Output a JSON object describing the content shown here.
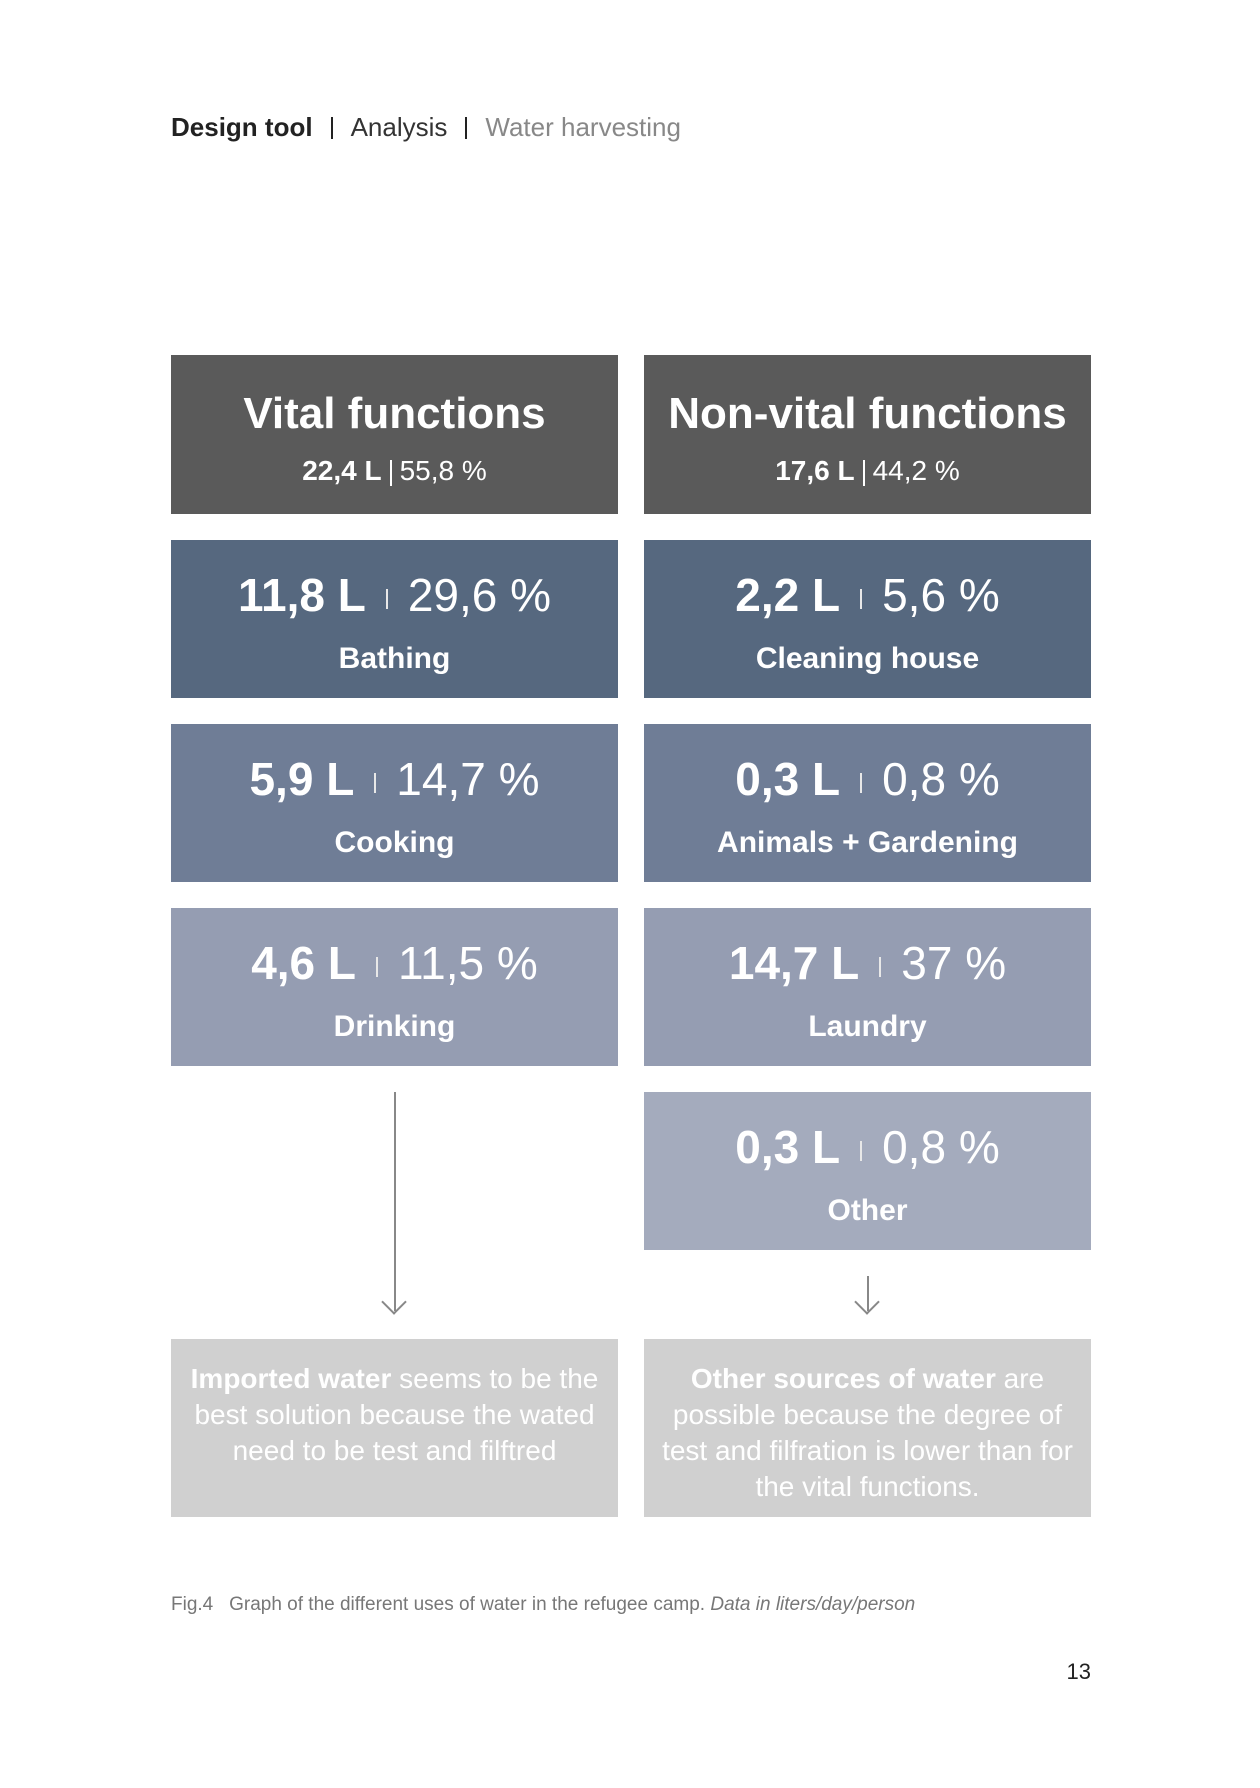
{
  "header": {
    "parts": [
      "Design tool",
      "Analysis",
      "Water harvesting"
    ]
  },
  "columns": [
    {
      "title": "Vital functions",
      "liters": "22,4 L",
      "percent": "55,8 %",
      "uses": [
        {
          "liters": "11,8 L",
          "percent": "29,6 %",
          "label": "Bathing"
        },
        {
          "liters": "5,9 L",
          "percent": "14,7 %",
          "label": "Cooking"
        },
        {
          "liters": "4,6 L",
          "percent": "11,5 %",
          "label": "Drinking"
        }
      ],
      "conclusion": [
        {
          "text": "Imported water",
          "bold": true
        },
        {
          "text": " seems to be the best solution because the wated need to be test and filftred",
          "bold": false
        }
      ]
    },
    {
      "title": "Non-vital functions",
      "liters": "17,6 L",
      "percent": "44,2 %",
      "uses": [
        {
          "liters": "2,2 L",
          "percent": "5,6 %",
          "label": "Cleaning house"
        },
        {
          "liters": "0,3 L",
          "percent": "0,8 %",
          "label": "Animals + Gardening"
        },
        {
          "liters": "14,7 L",
          "percent": "37 %",
          "label": "Laundry"
        },
        {
          "liters": "0,3 L",
          "percent": "0,8 %",
          "label": "Other"
        }
      ],
      "conclusion": [
        {
          "text": "Other sources of water",
          "bold": true
        },
        {
          "text": " are possible because the degree of test and filfration is lower than for the vital functions.",
          "bold": false
        }
      ]
    }
  ],
  "caption": {
    "figure": "Fig.4",
    "text": "Graph of the different uses of water in the refugee camp.",
    "note": "Data in liters/day/person"
  },
  "page_number": "13"
}
